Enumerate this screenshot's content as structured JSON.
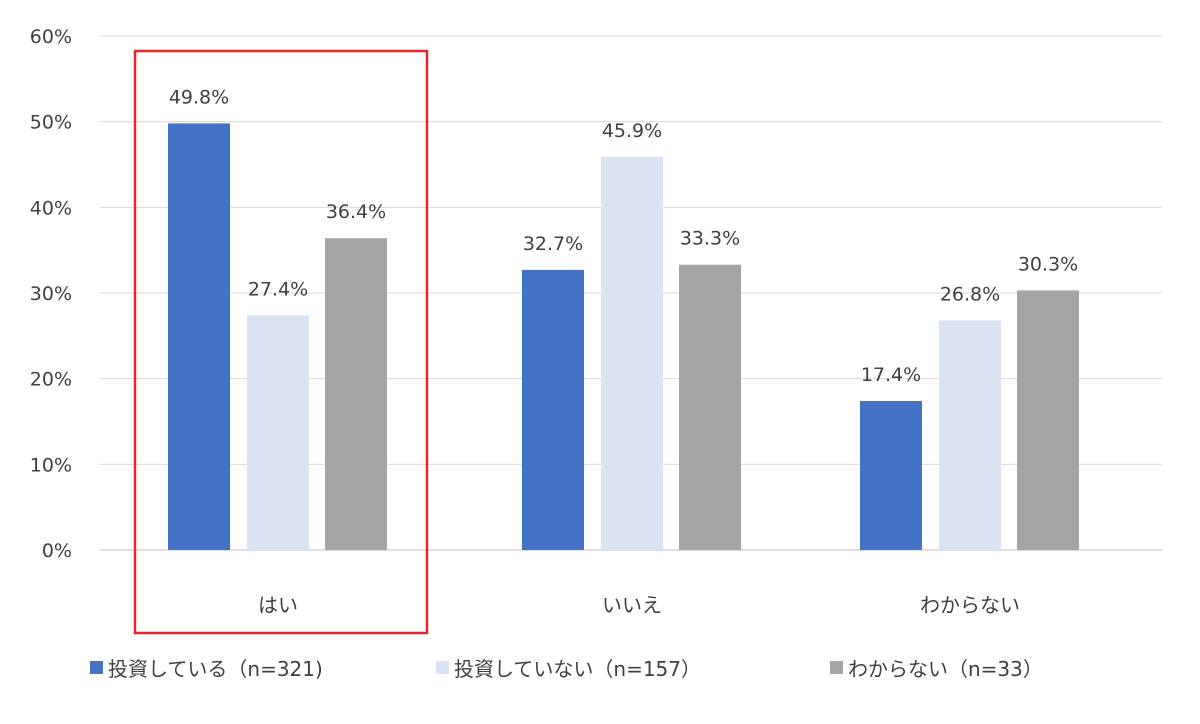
{
  "chart_data": {
    "type": "bar",
    "categories": [
      "はい",
      "いいえ",
      "わからない"
    ],
    "series": [
      {
        "name": "投資している（n=321)",
        "values": [
          49.8,
          32.7,
          17.4
        ],
        "color": "#4472C4"
      },
      {
        "name": "投資していない（n=157）",
        "values": [
          27.4,
          45.9,
          26.8
        ],
        "color": "#DAE3F3"
      },
      {
        "name": "わからない（n=33）",
        "values": [
          36.4,
          33.3,
          30.3
        ],
        "color": "#A5A5A5"
      }
    ],
    "data_labels": [
      [
        "49.8%",
        "32.7%",
        "17.4%"
      ],
      [
        "27.4%",
        "45.9%",
        "26.8%"
      ],
      [
        "36.4%",
        "33.3%",
        "30.3%"
      ]
    ],
    "ylim": [
      0,
      60
    ],
    "yticks": [
      "0%",
      "10%",
      "20%",
      "30%",
      "40%",
      "50%",
      "60%"
    ],
    "grid": true,
    "legend": "bottom",
    "highlight": {
      "category": "はい",
      "color": "#E8262B"
    }
  }
}
